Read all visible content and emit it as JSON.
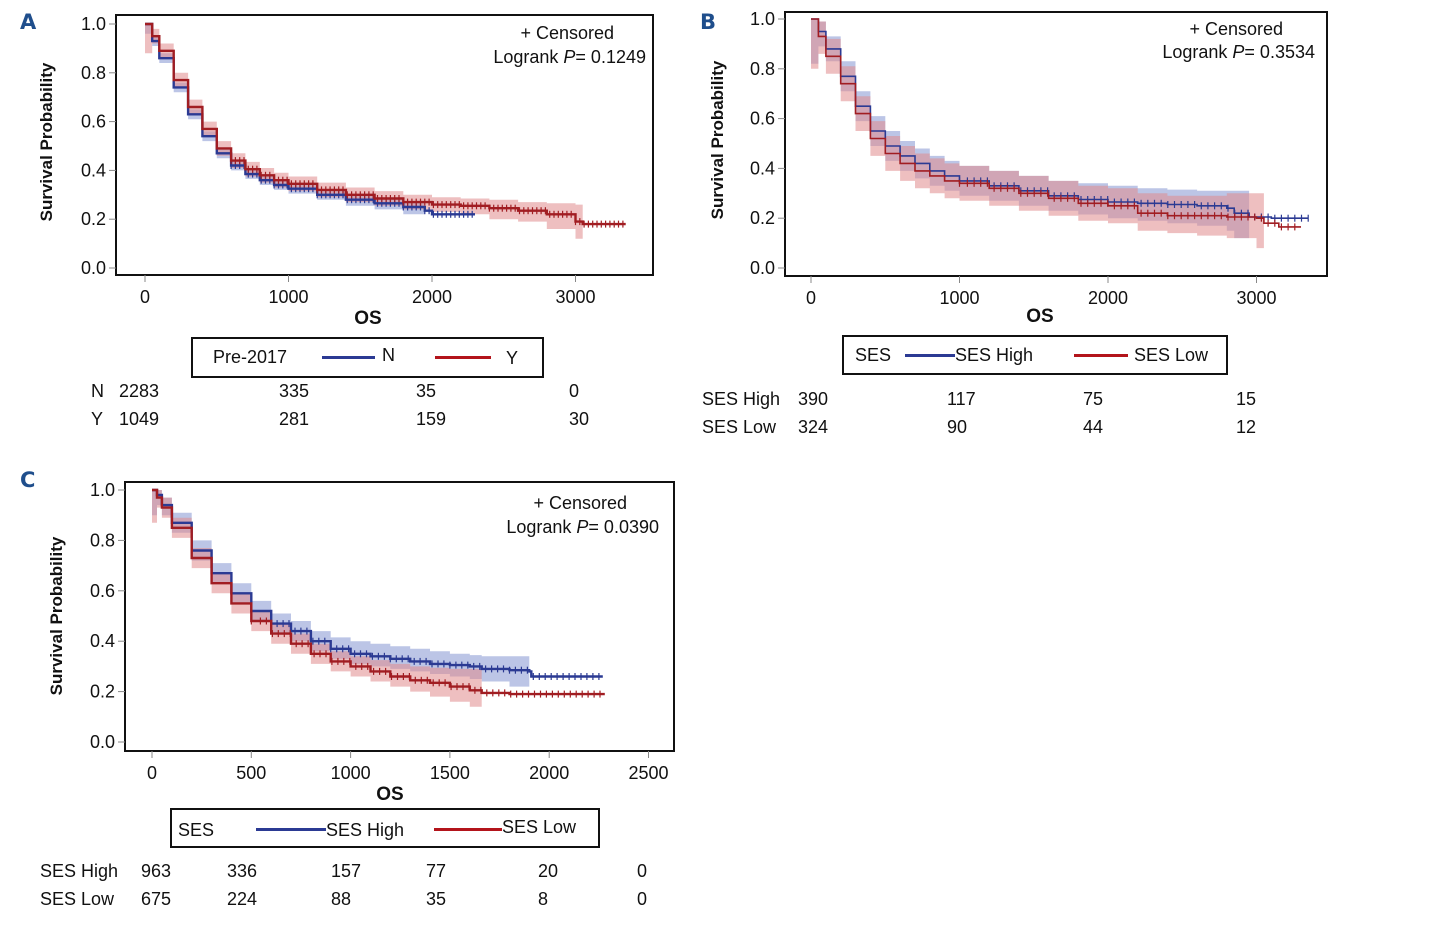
{
  "colors": {
    "blue": "#2b3a93",
    "red": "#a11d22",
    "blue_band": "#8f9ed6",
    "red_band": "#e08a8d",
    "letter": "#1f4e8c"
  },
  "chart_data": [
    {
      "panel": "A",
      "type": "line",
      "subtype": "kaplan-meier",
      "xlabel": "OS",
      "ylabel": "Survival Probability",
      "xlim": [
        -200,
        3550
      ],
      "ylim": [
        0.0,
        1.0
      ],
      "xticks": [
        "0",
        "1000",
        "2000",
        "3000"
      ],
      "xtick_values": [
        0,
        1000,
        2000,
        3000
      ],
      "yticks": [
        "0.0",
        "0.2",
        "0.4",
        "0.6",
        "0.8",
        "1.0"
      ],
      "ytick_values": [
        0.0,
        0.2,
        0.4,
        0.6,
        0.8,
        1.0
      ],
      "annotation_censored": "+ Censored",
      "annotation_logrank_prefix": "Logrank ",
      "annotation_logrank_p": "P",
      "annotation_logrank_value": "= 0.1249",
      "legend": {
        "title": "Pre-2017",
        "entries": [
          "N",
          "Y"
        ],
        "placement": "bottom"
      },
      "series": [
        {
          "name": "N",
          "color": "blue",
          "x": [
            0,
            50,
            100,
            200,
            300,
            400,
            500,
            600,
            700,
            800,
            900,
            1000,
            1200,
            1400,
            1600,
            1800,
            1950,
            2000,
            2200,
            2300
          ],
          "y": [
            1.0,
            0.93,
            0.86,
            0.74,
            0.63,
            0.54,
            0.47,
            0.42,
            0.385,
            0.36,
            0.34,
            0.325,
            0.3,
            0.28,
            0.265,
            0.25,
            0.235,
            0.22,
            0.22,
            0.22
          ],
          "lower": [
            0.96,
            0.91,
            0.84,
            0.72,
            0.61,
            0.52,
            0.45,
            0.4,
            0.365,
            0.34,
            0.32,
            0.305,
            0.28,
            0.255,
            0.24,
            0.22,
            0.17
          ],
          "upper": [
            1.0,
            0.95,
            0.88,
            0.76,
            0.65,
            0.56,
            0.49,
            0.44,
            0.405,
            0.38,
            0.36,
            0.345,
            0.32,
            0.3,
            0.29,
            0.275,
            0.26
          ],
          "band_x_end": 1950,
          "censor_from": 600
        },
        {
          "name": "Y",
          "color": "red",
          "x": [
            0,
            50,
            100,
            200,
            300,
            400,
            500,
            600,
            700,
            800,
            900,
            1000,
            1200,
            1400,
            1600,
            1800,
            2000,
            2200,
            2400,
            2600,
            2800,
            3000,
            3050,
            3200,
            3350
          ],
          "y": [
            1.0,
            0.95,
            0.89,
            0.77,
            0.66,
            0.57,
            0.49,
            0.44,
            0.405,
            0.38,
            0.36,
            0.345,
            0.32,
            0.3,
            0.285,
            0.27,
            0.26,
            0.255,
            0.245,
            0.235,
            0.22,
            0.19,
            0.18,
            0.18,
            0.18
          ],
          "lower": [
            0.88,
            0.92,
            0.86,
            0.74,
            0.63,
            0.54,
            0.46,
            0.41,
            0.375,
            0.35,
            0.33,
            0.315,
            0.29,
            0.27,
            0.255,
            0.24,
            0.23,
            0.22,
            0.2,
            0.19,
            0.16,
            0.12,
            0.11
          ],
          "upper": [
            1.0,
            0.98,
            0.92,
            0.8,
            0.69,
            0.6,
            0.52,
            0.47,
            0.435,
            0.41,
            0.39,
            0.375,
            0.35,
            0.33,
            0.315,
            0.3,
            0.29,
            0.285,
            0.28,
            0.27,
            0.265,
            0.26,
            0.26
          ],
          "band_x_end": 3050,
          "censor_from": 600
        }
      ],
      "risk_table": {
        "rows": [
          {
            "label": "N",
            "values": [
              "2283",
              "335",
              "35",
              "0"
            ]
          },
          {
            "label": "Y",
            "values": [
              "1049",
              "281",
              "159",
              "30"
            ]
          }
        ]
      }
    },
    {
      "panel": "B",
      "type": "line",
      "subtype": "kaplan-meier",
      "xlabel": "OS",
      "ylabel": "Survival Probability",
      "xlim": [
        -180,
        3500
      ],
      "ylim": [
        0.0,
        1.0
      ],
      "xticks": [
        "0",
        "1000",
        "2000",
        "3000"
      ],
      "xtick_values": [
        0,
        1000,
        2000,
        3000
      ],
      "yticks": [
        "0.0",
        "0.2",
        "0.4",
        "0.6",
        "0.8",
        "1.0"
      ],
      "ytick_values": [
        0.0,
        0.2,
        0.4,
        0.6,
        0.8,
        1.0
      ],
      "annotation_censored": "+ Censored",
      "annotation_logrank_prefix": "Logrank ",
      "annotation_logrank_p": "P",
      "annotation_logrank_value": "= 0.3534",
      "legend": {
        "title": "SES",
        "entries": [
          "SES High",
          "SES Low"
        ],
        "placement": "bottom"
      },
      "series": [
        {
          "name": "SES High",
          "color": "blue",
          "x": [
            0,
            50,
            100,
            200,
            300,
            400,
            500,
            600,
            700,
            800,
            900,
            1000,
            1200,
            1400,
            1600,
            1800,
            2000,
            2200,
            2400,
            2600,
            2800,
            2850,
            2950,
            3100,
            3350
          ],
          "y": [
            1.0,
            0.95,
            0.88,
            0.77,
            0.65,
            0.55,
            0.49,
            0.45,
            0.42,
            0.39,
            0.37,
            0.35,
            0.33,
            0.31,
            0.29,
            0.275,
            0.265,
            0.26,
            0.255,
            0.25,
            0.24,
            0.22,
            0.205,
            0.2,
            0.2
          ],
          "lower": [
            0.82,
            0.89,
            0.83,
            0.71,
            0.59,
            0.49,
            0.43,
            0.39,
            0.36,
            0.33,
            0.31,
            0.29,
            0.27,
            0.25,
            0.23,
            0.215,
            0.2,
            0.19,
            0.18,
            0.17,
            0.15,
            0.12,
            0.11
          ],
          "upper": [
            1.0,
            0.99,
            0.93,
            0.83,
            0.71,
            0.61,
            0.55,
            0.51,
            0.48,
            0.45,
            0.43,
            0.41,
            0.39,
            0.37,
            0.35,
            0.34,
            0.33,
            0.32,
            0.315,
            0.31,
            0.31,
            0.31,
            0.31
          ],
          "band_x_end": 2950,
          "censor_from": 1000
        },
        {
          "name": "SES Low",
          "color": "red",
          "x": [
            0,
            50,
            100,
            200,
            300,
            400,
            500,
            600,
            700,
            800,
            900,
            1000,
            1200,
            1400,
            1600,
            1800,
            2000,
            2200,
            2400,
            2600,
            2800,
            3000,
            3050,
            3150,
            3300
          ],
          "y": [
            1.0,
            0.93,
            0.85,
            0.74,
            0.62,
            0.52,
            0.46,
            0.42,
            0.39,
            0.37,
            0.35,
            0.34,
            0.32,
            0.3,
            0.28,
            0.26,
            0.25,
            0.22,
            0.21,
            0.21,
            0.205,
            0.2,
            0.18,
            0.165,
            0.165
          ],
          "lower": [
            0.8,
            0.86,
            0.78,
            0.67,
            0.55,
            0.45,
            0.39,
            0.35,
            0.32,
            0.3,
            0.28,
            0.27,
            0.25,
            0.23,
            0.21,
            0.19,
            0.18,
            0.15,
            0.14,
            0.13,
            0.12,
            0.08,
            0.07
          ],
          "upper": [
            1.0,
            0.99,
            0.92,
            0.81,
            0.69,
            0.59,
            0.53,
            0.49,
            0.46,
            0.44,
            0.42,
            0.41,
            0.39,
            0.37,
            0.35,
            0.33,
            0.32,
            0.3,
            0.29,
            0.29,
            0.3,
            0.3,
            0.3
          ],
          "band_x_end": 3050,
          "censor_from": 1000
        }
      ],
      "risk_table": {
        "rows": [
          {
            "label": "SES High",
            "values": [
              "390",
              "117",
              "75",
              "15"
            ]
          },
          {
            "label": "SES Low",
            "values": [
              "324",
              "90",
              "44",
              "12"
            ]
          }
        ]
      }
    },
    {
      "panel": "C",
      "type": "line",
      "subtype": "kaplan-meier",
      "xlabel": "OS",
      "ylabel": "Survival Probability",
      "xlim": [
        -135,
        2640
      ],
      "ylim": [
        0.0,
        1.0
      ],
      "xticks": [
        "0",
        "500",
        "1000",
        "1500",
        "2000",
        "2500"
      ],
      "xtick_values": [
        0,
        500,
        1000,
        1500,
        2000,
        2500
      ],
      "yticks": [
        "0.0",
        "0.2",
        "0.4",
        "0.6",
        "0.8",
        "1.0"
      ],
      "ytick_values": [
        0.0,
        0.2,
        0.4,
        0.6,
        0.8,
        1.0
      ],
      "annotation_censored": "+ Censored",
      "annotation_logrank_prefix": "Logrank ",
      "annotation_logrank_p": "P",
      "annotation_logrank_value": "= 0.0390",
      "legend": {
        "title": "SES",
        "entries": [
          "SES High",
          "SES Low"
        ],
        "placement": "bottom"
      },
      "series": [
        {
          "name": "SES High",
          "color": "blue",
          "x": [
            0,
            25,
            50,
            100,
            200,
            300,
            400,
            500,
            600,
            700,
            800,
            900,
            1000,
            1100,
            1200,
            1300,
            1400,
            1500,
            1600,
            1660,
            1800,
            1900,
            1910,
            2050,
            2200,
            2270
          ],
          "y": [
            1.0,
            0.98,
            0.94,
            0.87,
            0.76,
            0.67,
            0.59,
            0.52,
            0.47,
            0.44,
            0.4,
            0.37,
            0.35,
            0.34,
            0.33,
            0.32,
            0.31,
            0.305,
            0.3,
            0.29,
            0.285,
            0.28,
            0.26,
            0.26,
            0.26,
            0.26
          ],
          "lower": [
            0.9,
            0.94,
            0.9,
            0.83,
            0.72,
            0.63,
            0.55,
            0.48,
            0.43,
            0.4,
            0.36,
            0.33,
            0.31,
            0.3,
            0.29,
            0.28,
            0.27,
            0.26,
            0.25,
            0.24,
            0.22,
            0.2
          ],
          "upper": [
            1.0,
            1.0,
            0.97,
            0.91,
            0.8,
            0.71,
            0.63,
            0.56,
            0.51,
            0.48,
            0.44,
            0.415,
            0.4,
            0.39,
            0.38,
            0.37,
            0.36,
            0.35,
            0.345,
            0.34,
            0.34,
            0.34
          ],
          "band_x_end": 1900,
          "censor_from": 600
        },
        {
          "name": "SES Low",
          "color": "red",
          "x": [
            0,
            25,
            50,
            100,
            200,
            300,
            400,
            500,
            600,
            700,
            800,
            900,
            1000,
            1100,
            1200,
            1300,
            1400,
            1500,
            1600,
            1660,
            1800,
            2000,
            2200,
            2280
          ],
          "y": [
            1.0,
            0.97,
            0.93,
            0.85,
            0.73,
            0.63,
            0.55,
            0.48,
            0.43,
            0.39,
            0.35,
            0.32,
            0.3,
            0.28,
            0.26,
            0.245,
            0.235,
            0.22,
            0.205,
            0.195,
            0.19,
            0.19,
            0.19,
            0.19
          ],
          "lower": [
            0.87,
            0.93,
            0.89,
            0.81,
            0.69,
            0.59,
            0.51,
            0.44,
            0.39,
            0.35,
            0.31,
            0.28,
            0.26,
            0.24,
            0.22,
            0.2,
            0.18,
            0.16,
            0.14,
            0.12
          ],
          "upper": [
            1.0,
            1.0,
            0.97,
            0.89,
            0.77,
            0.67,
            0.59,
            0.52,
            0.47,
            0.43,
            0.39,
            0.36,
            0.34,
            0.325,
            0.31,
            0.3,
            0.295,
            0.29,
            0.29,
            0.29
          ],
          "band_x_end": 1660,
          "censor_from": 500
        }
      ],
      "risk_table": {
        "rows": [
          {
            "label": "SES High",
            "values": [
              "963",
              "336",
              "157",
              "77",
              "20",
              "0"
            ]
          },
          {
            "label": "SES Low",
            "values": [
              "675",
              "224",
              "88",
              "35",
              "8",
              "0"
            ]
          }
        ]
      }
    }
  ]
}
